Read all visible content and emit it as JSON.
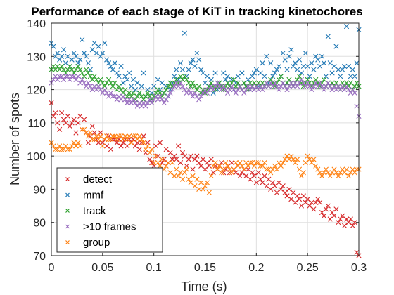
{
  "chart_data": {
    "type": "scatter",
    "title": "Performance of each stage of KiT in tracking kinetochores",
    "xlabel": "Time (s)",
    "ylabel": "Number of spots",
    "xlim": [
      0,
      0.3
    ],
    "ylim": [
      70,
      140
    ],
    "xticks": [
      "0",
      "0.05",
      "0.1",
      "0.15",
      "0.2",
      "0.25",
      "0.3"
    ],
    "yticks": [
      "70",
      "80",
      "90",
      "100",
      "110",
      "120",
      "130",
      "140"
    ],
    "grid": true,
    "legend_position": "bottom-left",
    "marker": "x",
    "x": [
      0.0,
      0.002,
      0.004,
      0.006,
      0.008,
      0.01,
      0.012,
      0.014,
      0.016,
      0.018,
      0.02,
      0.022,
      0.024,
      0.026,
      0.028,
      0.03,
      0.032,
      0.034,
      0.036,
      0.038,
      0.04,
      0.042,
      0.044,
      0.046,
      0.048,
      0.05,
      0.052,
      0.054,
      0.056,
      0.058,
      0.06,
      0.062,
      0.064,
      0.066,
      0.068,
      0.07,
      0.072,
      0.074,
      0.076,
      0.078,
      0.08,
      0.082,
      0.084,
      0.086,
      0.088,
      0.09,
      0.092,
      0.094,
      0.096,
      0.098,
      0.1,
      0.102,
      0.104,
      0.106,
      0.108,
      0.11,
      0.112,
      0.114,
      0.116,
      0.118,
      0.12,
      0.122,
      0.124,
      0.126,
      0.128,
      0.13,
      0.132,
      0.134,
      0.136,
      0.138,
      0.14,
      0.142,
      0.144,
      0.146,
      0.148,
      0.15,
      0.152,
      0.154,
      0.156,
      0.158,
      0.16,
      0.162,
      0.164,
      0.166,
      0.168,
      0.17,
      0.172,
      0.174,
      0.176,
      0.178,
      0.18,
      0.182,
      0.184,
      0.186,
      0.188,
      0.19,
      0.192,
      0.194,
      0.196,
      0.198,
      0.2,
      0.202,
      0.204,
      0.206,
      0.208,
      0.21,
      0.212,
      0.214,
      0.216,
      0.218,
      0.22,
      0.222,
      0.224,
      0.226,
      0.228,
      0.23,
      0.232,
      0.234,
      0.236,
      0.238,
      0.24,
      0.242,
      0.244,
      0.246,
      0.248,
      0.25,
      0.252,
      0.254,
      0.256,
      0.258,
      0.26,
      0.262,
      0.264,
      0.266,
      0.268,
      0.27,
      0.272,
      0.274,
      0.276,
      0.278,
      0.28,
      0.282,
      0.284,
      0.286,
      0.288,
      0.29,
      0.292,
      0.294,
      0.296,
      0.298,
      0.3
    ],
    "series": [
      {
        "name": "detect",
        "color": "#d62728",
        "values": [
          116,
          112,
          113,
          110,
          108,
          113,
          111,
          110,
          112,
          109,
          110,
          111,
          107,
          110,
          112,
          108,
          111,
          107,
          104,
          106,
          109,
          107,
          105,
          104,
          107,
          104,
          105,
          103,
          106,
          102,
          105,
          105,
          104,
          105,
          103,
          104,
          105,
          103,
          105,
          104,
          105,
          103,
          104,
          102,
          104,
          106,
          101,
          104,
          99,
          98,
          97,
          103,
          100,
          104,
          98,
          99,
          102,
          98,
          101,
          99,
          100,
          99,
          103,
          98,
          101,
          100,
          97,
          99,
          100,
          96,
          99,
          100,
          98,
          97,
          99,
          96,
          98,
          97,
          99,
          95,
          97,
          96,
          97,
          98,
          95,
          96,
          97,
          95,
          98,
          96,
          95,
          97,
          94,
          95,
          96,
          94,
          96,
          93,
          95,
          94,
          92,
          95,
          93,
          92,
          94,
          91,
          93,
          90,
          92,
          91,
          89,
          92,
          90,
          91,
          89,
          88,
          90,
          87,
          89,
          86,
          88,
          87,
          85,
          88,
          86,
          87,
          85,
          86,
          84,
          86,
          87,
          86,
          83,
          82,
          84,
          85,
          81,
          83,
          82,
          84,
          80,
          81,
          82,
          79,
          81,
          80,
          81,
          79,
          80,
          71,
          70
        ]
      },
      {
        "name": "mmf",
        "color": "#1f77b4",
        "values": [
          134,
          133,
          130,
          131,
          129,
          130,
          132,
          128,
          130,
          127,
          129,
          131,
          130,
          128,
          129,
          135,
          131,
          130,
          128,
          126,
          132,
          134,
          131,
          133,
          130,
          131,
          134,
          129,
          128,
          127,
          126,
          128,
          125,
          124,
          127,
          122,
          124,
          123,
          125,
          121,
          123,
          120,
          122,
          119,
          121,
          125,
          118,
          120,
          117,
          119,
          121,
          118,
          123,
          120,
          122,
          119,
          121,
          118,
          120,
          122,
          124,
          126,
          123,
          128,
          126,
          137,
          124,
          126,
          128,
          129,
          127,
          131,
          129,
          126,
          125,
          122,
          124,
          121,
          123,
          119,
          125,
          120,
          122,
          121,
          125,
          123,
          124,
          121,
          123,
          120,
          122,
          124,
          121,
          125,
          122,
          121,
          123,
          120,
          124,
          125,
          126,
          121,
          125,
          128,
          124,
          130,
          122,
          128,
          124,
          125,
          126,
          127,
          124,
          131,
          129,
          126,
          130,
          132,
          127,
          128,
          126,
          129,
          125,
          127,
          131,
          127,
          124,
          128,
          126,
          130,
          129,
          127,
          130,
          128,
          124,
          136,
          128,
          125,
          127,
          133,
          126,
          124,
          126,
          127,
          139,
          127,
          124,
          126,
          124,
          128,
          138
        ]
      },
      {
        "name": "track",
        "color": "#2ca02c",
        "values": [
          126,
          127,
          126,
          127,
          126,
          127,
          126,
          125,
          126,
          127,
          126,
          125,
          126,
          127,
          126,
          125,
          124,
          126,
          125,
          124,
          123,
          124,
          123,
          122,
          123,
          122,
          121,
          122,
          123,
          122,
          121,
          122,
          120,
          121,
          120,
          119,
          120,
          118,
          119,
          118,
          119,
          117,
          118,
          119,
          118,
          117,
          118,
          119,
          118,
          117,
          118,
          119,
          120,
          119,
          118,
          119,
          120,
          121,
          122,
          121,
          122,
          123,
          122,
          124,
          123,
          124,
          123,
          122,
          121,
          122,
          121,
          120,
          121,
          119,
          120,
          119,
          120,
          121,
          122,
          121,
          120,
          121,
          122,
          121,
          120,
          121,
          122,
          121,
          122,
          123,
          121,
          122,
          121,
          120,
          122,
          121,
          120,
          122,
          121,
          122,
          121,
          122,
          121,
          122,
          121,
          122,
          121,
          123,
          122,
          121,
          122,
          123,
          124,
          122,
          121,
          122,
          123,
          122,
          121,
          122,
          123,
          124,
          122,
          121,
          122,
          123,
          122,
          121,
          122,
          123,
          122,
          121,
          122,
          123,
          121,
          122,
          121,
          122,
          121,
          122,
          121,
          120,
          122,
          121,
          122,
          121,
          122,
          120,
          121,
          122,
          121
        ]
      },
      {
        "name": ">10 frames",
        "color": "#9467bd",
        "values": [
          122,
          123,
          124,
          123,
          124,
          124,
          123,
          124,
          124,
          123,
          124,
          124,
          123,
          124,
          122,
          123,
          122,
          121,
          122,
          121,
          120,
          121,
          120,
          121,
          120,
          119,
          120,
          119,
          118,
          119,
          118,
          118,
          117,
          118,
          117,
          118,
          117,
          116,
          117,
          116,
          117,
          116,
          115,
          116,
          115,
          116,
          115,
          116,
          117,
          116,
          117,
          118,
          117,
          118,
          117,
          116,
          117,
          118,
          119,
          120,
          121,
          122,
          121,
          122,
          121,
          120,
          119,
          120,
          119,
          118,
          119,
          118,
          117,
          118,
          119,
          120,
          119,
          120,
          121,
          120,
          121,
          122,
          121,
          120,
          121,
          120,
          119,
          120,
          121,
          120,
          119,
          120,
          121,
          120,
          119,
          120,
          121,
          120,
          121,
          120,
          121,
          120,
          121,
          120,
          121,
          122,
          121,
          122,
          121,
          122,
          121,
          120,
          121,
          122,
          121,
          120,
          121,
          122,
          121,
          122,
          121,
          122,
          123,
          122,
          121,
          122,
          121,
          120,
          121,
          122,
          121,
          122,
          121,
          120,
          121,
          122,
          121,
          120,
          121,
          120,
          121,
          120,
          121,
          120,
          121,
          120,
          119,
          120,
          119,
          115,
          112
        ]
      },
      {
        "name": "group",
        "color": "#ff7f0e",
        "values": [
          104,
          103,
          102,
          102,
          103,
          102,
          102,
          103,
          102,
          102,
          103,
          104,
          103,
          104,
          103,
          108,
          108,
          107,
          106,
          107,
          105,
          105,
          106,
          105,
          106,
          103,
          105,
          106,
          105,
          105,
          106,
          106,
          105,
          106,
          106,
          105,
          106,
          105,
          106,
          104,
          106,
          106,
          105,
          106,
          105,
          104,
          102,
          103,
          101,
          102,
          98,
          100,
          98,
          97,
          99,
          96,
          97,
          98,
          95,
          98,
          94,
          96,
          94,
          95,
          93,
          95,
          96,
          93,
          92,
          94,
          91,
          93,
          90,
          92,
          90,
          91,
          92,
          89,
          94,
          97,
          98,
          96,
          97,
          95,
          96,
          98,
          97,
          96,
          95,
          96,
          98,
          97,
          98,
          97,
          96,
          98,
          97,
          98,
          98,
          97,
          98,
          98,
          97,
          97,
          98,
          96,
          96,
          95,
          96,
          97,
          96,
          98,
          97,
          98,
          99,
          100,
          99,
          100,
          99,
          98,
          99,
          96,
          94,
          95,
          98,
          100,
          99,
          98,
          99,
          97,
          96,
          95,
          94,
          95,
          96,
          95,
          94,
          95,
          96,
          95,
          94,
          95,
          96,
          95,
          96,
          94,
          95,
          96,
          95,
          96,
          96
        ]
      }
    ]
  }
}
